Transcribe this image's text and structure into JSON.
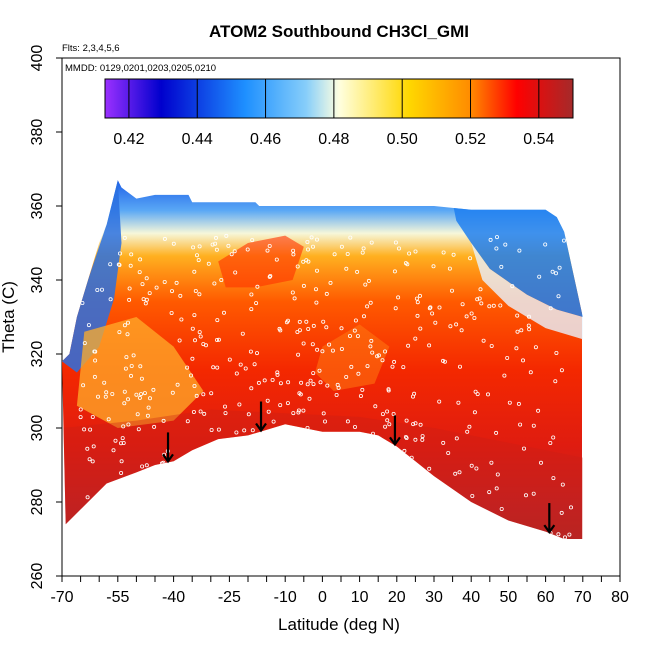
{
  "chart_data": {
    "type": "heatmap",
    "title": "ATOM2 Southbound CH3Cl_GMI",
    "flights_label": "Flts: 2,3,4,5,6",
    "dates_label": "MMDD: 0129,0201,0203,0205,0210",
    "xlabel": "Latitude (deg N)",
    "ylabel": "Theta (C)",
    "xlim": [
      -70,
      80
    ],
    "ylim": [
      260,
      400
    ],
    "x_tick_labels": [
      "-70",
      "-55",
      "-40",
      "-25",
      "-10",
      "0",
      "10",
      "20",
      "30",
      "40",
      "50",
      "60",
      "70",
      "80"
    ],
    "x_tick_values": [
      -70,
      -55,
      -40,
      -25,
      -10,
      0,
      10,
      20,
      30,
      40,
      50,
      60,
      70,
      80
    ],
    "y_tick_values": [
      260,
      280,
      300,
      320,
      340,
      360,
      380,
      400
    ],
    "y_tick_labels": [
      "260",
      "280",
      "300",
      "320",
      "340",
      "360",
      "380",
      "400"
    ],
    "colorbar": {
      "min": 0.413,
      "max": 0.55,
      "tick_values": [
        0.42,
        0.44,
        0.46,
        0.48,
        0.5,
        0.52,
        0.54
      ],
      "tick_labels": [
        "0.42",
        "0.44",
        "0.46",
        "0.48",
        "0.50",
        "0.52",
        "0.54"
      ],
      "colors": [
        "#9b30ff",
        "#0000cd",
        "#1e90ff",
        "#87cefa",
        "#ffffe0",
        "#ffd700",
        "#ff8c00",
        "#ff0000",
        "#a52a2a"
      ]
    },
    "surface_boundary": {
      "lat": [
        -69,
        -65,
        -58,
        -50,
        -45,
        -40,
        -35,
        -28,
        -20,
        -10,
        -5,
        0,
        5,
        10,
        15,
        20,
        25,
        30,
        40,
        50,
        60,
        65,
        70
      ],
      "theta": [
        274,
        278,
        285,
        288,
        290,
        291,
        294,
        297,
        298,
        301,
        300,
        299,
        299,
        299,
        298,
        295,
        291,
        287,
        280,
        275,
        272,
        270,
        270
      ]
    },
    "top_boundary": {
      "lat": [
        -70,
        -68,
        -66,
        -63,
        -60,
        -58,
        -56,
        -55,
        -54,
        -50,
        -45,
        -36,
        -35,
        -18,
        -17,
        0,
        30,
        40,
        50,
        60,
        63,
        65,
        70
      ],
      "theta": [
        318,
        320,
        330,
        340,
        350,
        355,
        363,
        367,
        365,
        362,
        363,
        363,
        361,
        361,
        360,
        360,
        360,
        359,
        359,
        359,
        357,
        353,
        330
      ]
    },
    "arrows_lat": [
      -41.5,
      -16.5,
      19.5,
      61
    ]
  }
}
